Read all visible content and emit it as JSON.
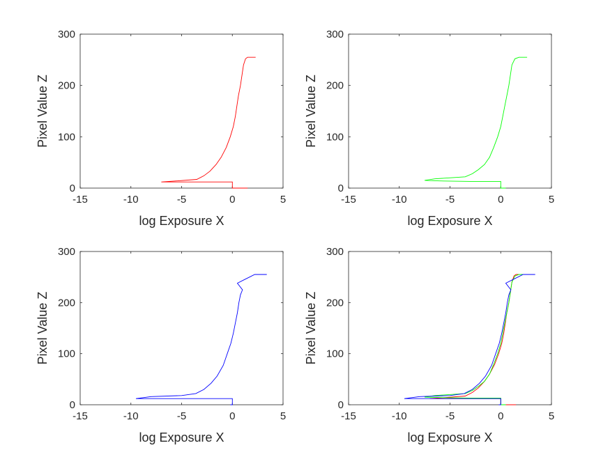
{
  "chart_data": [
    {
      "type": "line",
      "xlabel": "log Exposure X",
      "ylabel": "Pixel Value Z",
      "xlim": [
        -15,
        5
      ],
      "ylim": [
        0,
        300
      ],
      "xticks": [
        -15,
        -10,
        -5,
        0,
        5
      ],
      "yticks": [
        0,
        100,
        200,
        300
      ],
      "grid": false,
      "series": [
        {
          "color": "#ff0000",
          "points": [
            [
              1.5,
              0
            ],
            [
              0,
              0
            ],
            [
              0,
              12
            ],
            [
              -3,
              12
            ],
            [
              -7,
              12
            ],
            [
              -5.5,
              14
            ],
            [
              -3.5,
              17
            ],
            [
              -2.8,
              24
            ],
            [
              -2.2,
              33
            ],
            [
              -1.6,
              46
            ],
            [
              -1.1,
              60
            ],
            [
              -0.6,
              79
            ],
            [
              -0.2,
              100
            ],
            [
              0.1,
              120
            ],
            [
              0.3,
              140
            ],
            [
              0.45,
              160
            ],
            [
              0.6,
              180
            ],
            [
              0.8,
              200
            ],
            [
              0.95,
              220
            ],
            [
              1.1,
              240
            ],
            [
              1.3,
              252
            ],
            [
              1.5,
              255
            ],
            [
              2.3,
              255
            ]
          ]
        }
      ]
    },
    {
      "type": "line",
      "xlabel": "log Exposure X",
      "ylabel": "Pixel Value Z",
      "xlim": [
        -15,
        5
      ],
      "ylim": [
        0,
        300
      ],
      "xticks": [
        -15,
        -10,
        -5,
        0,
        5
      ],
      "yticks": [
        0,
        100,
        200,
        300
      ],
      "grid": false,
      "series": [
        {
          "color": "#00ff00",
          "points": [
            [
              0.5,
              0
            ],
            [
              0,
              0
            ],
            [
              0,
              13
            ],
            [
              -3,
              13
            ],
            [
              -6,
              14
            ],
            [
              -7.5,
              15
            ],
            [
              -6.5,
              18
            ],
            [
              -3.5,
              22
            ],
            [
              -2.8,
              28
            ],
            [
              -2.2,
              36
            ],
            [
              -1.6,
              46
            ],
            [
              -1.1,
              60
            ],
            [
              -0.7,
              79
            ],
            [
              -0.3,
              100
            ],
            [
              0,
              120
            ],
            [
              0.2,
              140
            ],
            [
              0.4,
              160
            ],
            [
              0.6,
              180
            ],
            [
              0.8,
              200
            ],
            [
              0.95,
              220
            ],
            [
              1.1,
              240
            ],
            [
              1.4,
              252
            ],
            [
              1.8,
              255
            ],
            [
              2.6,
              255
            ]
          ]
        }
      ]
    },
    {
      "type": "line",
      "xlabel": "log Exposure X",
      "ylabel": "Pixel Value Z",
      "xlim": [
        -15,
        5
      ],
      "ylim": [
        0,
        300
      ],
      "xticks": [
        -15,
        -10,
        -5,
        0,
        5
      ],
      "yticks": [
        0,
        100,
        200,
        300
      ],
      "grid": false,
      "series": [
        {
          "color": "#0000ff",
          "points": [
            [
              -0.2,
              0
            ],
            [
              0,
              0
            ],
            [
              0,
              12
            ],
            [
              -4,
              12
            ],
            [
              -9.5,
              12
            ],
            [
              -8,
              16
            ],
            [
              -5,
              18
            ],
            [
              -3.6,
              22
            ],
            [
              -2.8,
              30
            ],
            [
              -2.1,
              42
            ],
            [
              -1.5,
              56
            ],
            [
              -0.9,
              77
            ],
            [
              -0.5,
              100
            ],
            [
              -0.15,
              120
            ],
            [
              0.1,
              140
            ],
            [
              0.3,
              160
            ],
            [
              0.5,
              180
            ],
            [
              0.65,
              200
            ],
            [
              0.8,
              215
            ],
            [
              1.0,
              225
            ],
            [
              0.5,
              238
            ],
            [
              1.2,
              245
            ],
            [
              1.7,
              250
            ],
            [
              2.2,
              255
            ],
            [
              3.4,
              255
            ]
          ]
        }
      ]
    },
    {
      "type": "line",
      "xlabel": "log Exposure X",
      "ylabel": "Pixel Value Z",
      "xlim": [
        -15,
        5
      ],
      "ylim": [
        0,
        300
      ],
      "xticks": [
        -15,
        -10,
        -5,
        0,
        5
      ],
      "yticks": [
        0,
        100,
        200,
        300
      ],
      "grid": false,
      "series": [
        {
          "color": "#ff0000",
          "points": [
            [
              1.5,
              0
            ],
            [
              0,
              0
            ],
            [
              0,
              12
            ],
            [
              -3,
              12
            ],
            [
              -7,
              12
            ],
            [
              -5.5,
              14
            ],
            [
              -3.5,
              17
            ],
            [
              -2.8,
              24
            ],
            [
              -2.2,
              33
            ],
            [
              -1.6,
              46
            ],
            [
              -1.1,
              60
            ],
            [
              -0.6,
              79
            ],
            [
              -0.2,
              100
            ],
            [
              0.1,
              120
            ],
            [
              0.3,
              140
            ],
            [
              0.45,
              160
            ],
            [
              0.6,
              180
            ],
            [
              0.8,
              200
            ],
            [
              0.95,
              220
            ],
            [
              1.1,
              240
            ],
            [
              1.3,
              252
            ],
            [
              1.5,
              255
            ],
            [
              2.3,
              255
            ]
          ]
        },
        {
          "color": "#00ff00",
          "points": [
            [
              0.5,
              0
            ],
            [
              0,
              0
            ],
            [
              0,
              13
            ],
            [
              -3,
              13
            ],
            [
              -6,
              14
            ],
            [
              -7.5,
              15
            ],
            [
              -6.5,
              18
            ],
            [
              -3.5,
              22
            ],
            [
              -2.8,
              28
            ],
            [
              -2.2,
              36
            ],
            [
              -1.6,
              46
            ],
            [
              -1.1,
              60
            ],
            [
              -0.7,
              79
            ],
            [
              -0.3,
              100
            ],
            [
              0,
              120
            ],
            [
              0.2,
              140
            ],
            [
              0.4,
              160
            ],
            [
              0.6,
              180
            ],
            [
              0.8,
              200
            ],
            [
              0.95,
              220
            ],
            [
              1.1,
              240
            ],
            [
              1.4,
              252
            ],
            [
              1.8,
              255
            ],
            [
              2.6,
              255
            ]
          ]
        },
        {
          "color": "#0000ff",
          "points": [
            [
              -0.2,
              0
            ],
            [
              0,
              0
            ],
            [
              0,
              12
            ],
            [
              -4,
              12
            ],
            [
              -9.5,
              12
            ],
            [
              -8,
              16
            ],
            [
              -5,
              18
            ],
            [
              -3.6,
              22
            ],
            [
              -2.8,
              30
            ],
            [
              -2.1,
              42
            ],
            [
              -1.5,
              56
            ],
            [
              -0.9,
              77
            ],
            [
              -0.5,
              100
            ],
            [
              -0.15,
              120
            ],
            [
              0.1,
              140
            ],
            [
              0.3,
              160
            ],
            [
              0.5,
              180
            ],
            [
              0.65,
              200
            ],
            [
              0.8,
              215
            ],
            [
              1.0,
              225
            ],
            [
              0.5,
              238
            ],
            [
              1.2,
              245
            ],
            [
              1.7,
              250
            ],
            [
              2.2,
              255
            ],
            [
              3.4,
              255
            ]
          ]
        }
      ]
    }
  ]
}
